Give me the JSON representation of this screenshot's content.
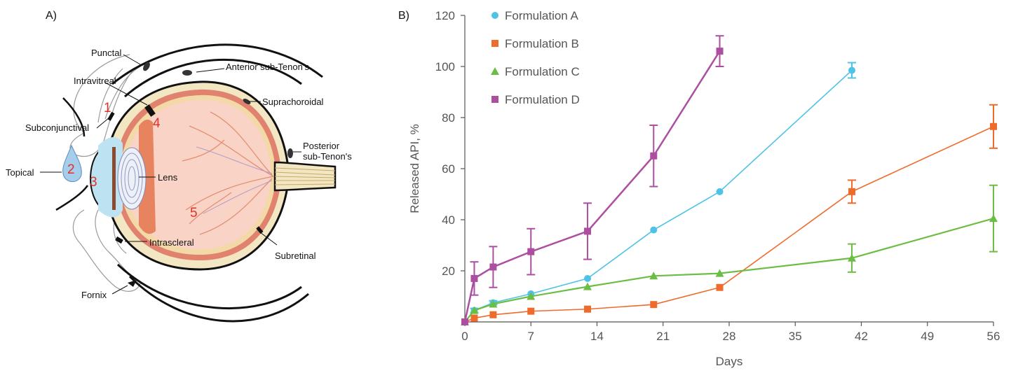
{
  "panels": {
    "a_label": "A)",
    "b_label": "B)"
  },
  "diagram": {
    "labels": {
      "punctal": "Punctal",
      "anterior_sub_tenons": "Anterior sub-Tenon's",
      "intravitreal": "Intravitreal",
      "suprachoroidal": "Suprachoroidal",
      "subconjunctival": "Subconjunctival",
      "posterior_line1": "Posterior",
      "posterior_line2": "sub-Tenon's",
      "topical": "Topical",
      "lens": "Lens",
      "intrascleral": "Intrascleral",
      "subretinal": "Subretinal",
      "fornix": "Fornix"
    },
    "numbers": [
      "1",
      "2",
      "3",
      "4",
      "5"
    ],
    "colors": {
      "number_red": "#e0312b",
      "sclera_line": "#111111",
      "choroid": "#e0826e",
      "retina": "#f4d9a8",
      "vitreous": "#f9d3c6",
      "cornea": "#bde3f2",
      "tear_drop": "#a6cdea"
    }
  },
  "chart_data": {
    "type": "line",
    "title": "",
    "xlabel": "Days",
    "ylabel": "Released API, %",
    "xlim": [
      0,
      56
    ],
    "ylim": [
      0,
      120
    ],
    "xticks": [
      0,
      7,
      14,
      21,
      28,
      35,
      42,
      49,
      56
    ],
    "yticks": [
      20,
      40,
      60,
      80,
      100,
      120
    ],
    "legend_position": "top-left",
    "grid": false,
    "series": [
      {
        "name": "Formulation A",
        "color": "#4ec3e6",
        "marker": "circle",
        "points": [
          {
            "x": 0,
            "y": 0
          },
          {
            "x": 1,
            "y": 4.5,
            "err": 0.8
          },
          {
            "x": 3,
            "y": 7.5,
            "err": 0.8
          },
          {
            "x": 7,
            "y": 11
          },
          {
            "x": 13,
            "y": 17
          },
          {
            "x": 20,
            "y": 36
          },
          {
            "x": 27,
            "y": 51
          },
          {
            "x": 41,
            "y": 98.5,
            "err": 3
          }
        ]
      },
      {
        "name": "Formulation B",
        "color": "#ef6b2c",
        "marker": "square",
        "points": [
          {
            "x": 0,
            "y": 0
          },
          {
            "x": 1,
            "y": 1.5
          },
          {
            "x": 3,
            "y": 2.8
          },
          {
            "x": 7,
            "y": 4.2
          },
          {
            "x": 13,
            "y": 5
          },
          {
            "x": 20,
            "y": 6.8
          },
          {
            "x": 27,
            "y": 13.5
          },
          {
            "x": 41,
            "y": 51,
            "err": 4.5
          },
          {
            "x": 56,
            "y": 76.5,
            "err": 8.5
          }
        ]
      },
      {
        "name": "Formulation C",
        "color": "#6cbd44",
        "marker": "triangle",
        "points": [
          {
            "x": 0,
            "y": 0
          },
          {
            "x": 1,
            "y": 4.5
          },
          {
            "x": 3,
            "y": 7
          },
          {
            "x": 7,
            "y": 10
          },
          {
            "x": 13,
            "y": 13.8
          },
          {
            "x": 20,
            "y": 18
          },
          {
            "x": 27,
            "y": 19
          },
          {
            "x": 41,
            "y": 25,
            "err": 5.5
          },
          {
            "x": 56,
            "y": 40.5,
            "err": 13
          }
        ]
      },
      {
        "name": "Formulation D",
        "color": "#ad4fa0",
        "marker": "square",
        "points": [
          {
            "x": 0,
            "y": 0
          },
          {
            "x": 1,
            "y": 17,
            "err": 6.5
          },
          {
            "x": 3,
            "y": 21.5,
            "err": 8
          },
          {
            "x": 7,
            "y": 27.5,
            "err": 9
          },
          {
            "x": 13,
            "y": 35.5,
            "err": 11
          },
          {
            "x": 20,
            "y": 65,
            "err": 12
          },
          {
            "x": 27,
            "y": 106,
            "err": 6
          }
        ]
      }
    ]
  }
}
